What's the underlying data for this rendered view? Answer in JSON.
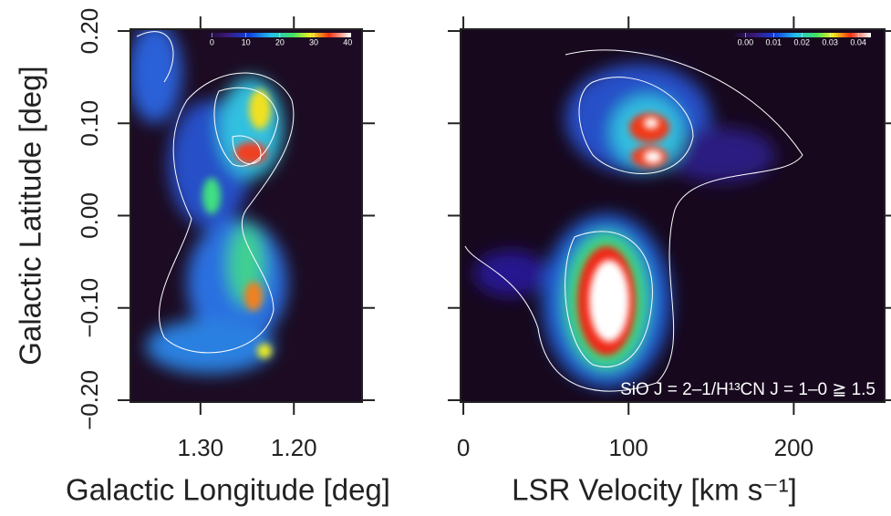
{
  "chart_data": [
    {
      "type": "heatmap",
      "xlabel": "Galactic Longitude [deg]",
      "ylabel": "Galactic Latitude [deg]",
      "xlim": [
        1.375,
        1.127
      ],
      "ylim": [
        -0.202,
        0.202
      ],
      "xticks": [
        {
          "value": 1.3,
          "label": "1.30"
        },
        {
          "value": 1.2,
          "label": "1.20"
        }
      ],
      "yticks": [
        {
          "value": -0.2,
          "label": "−0.20"
        },
        {
          "value": -0.1,
          "label": "−0.10"
        },
        {
          "value": 0,
          "label": "0.00"
        },
        {
          "value": 0.1,
          "label": "0.10"
        },
        {
          "value": 0.2,
          "label": "0.20"
        }
      ],
      "colorbar_lim": [
        -2,
        41
      ],
      "colorbar_ticks": [
        0,
        10,
        20,
        30,
        40
      ]
    },
    {
      "type": "heatmap",
      "xlabel": "LSR Velocity [km s⁻¹]",
      "annotation": "SiO J = 2–1/H¹³CN J = 1–0 ≧ 1.5",
      "xlim": [
        -1.7,
        255
      ],
      "ylim": [
        -0.202,
        0.202
      ],
      "xticks": [
        0,
        100,
        200
      ],
      "yticks": [
        -0.2,
        -0.1,
        0,
        0.1,
        0.2
      ],
      "colorbar_lim": [
        -0.004,
        0.0445
      ],
      "colorbar_ticks": [
        {
          "value": 0,
          "label": "0.00"
        },
        {
          "value": 0.01,
          "label": "0.01"
        },
        {
          "value": 0.02,
          "label": "0.02"
        },
        {
          "value": 0.03,
          "label": "0.03"
        },
        {
          "value": 0.04,
          "label": "0.04"
        }
      ]
    }
  ]
}
